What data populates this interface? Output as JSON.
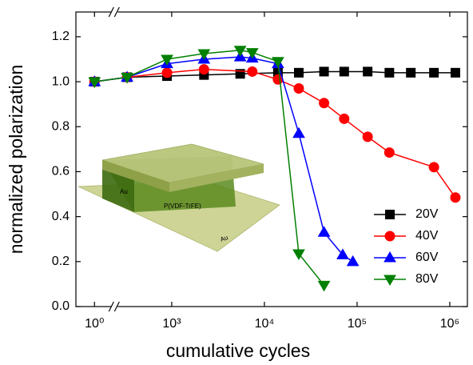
{
  "chart_data": {
    "type": "line",
    "x_label": "cumulative cycles",
    "y_label": "normalized polarization",
    "x_log": true,
    "xlim": [
      0.63,
      1550000
    ],
    "x_break": [
      1.58,
      232
    ],
    "ylim": [
      0,
      1.31
    ],
    "xticks": [
      {
        "value": 1,
        "label": "10⁰"
      },
      {
        "value": 1000,
        "label": "10³"
      },
      {
        "value": 10000,
        "label": "10⁴"
      },
      {
        "value": 100000,
        "label": "10⁵"
      },
      {
        "value": 1000000,
        "label": "10⁶"
      }
    ],
    "yticks": [
      {
        "value": 0,
        "label": "0.0"
      },
      {
        "value": 0.2,
        "label": "0.2"
      },
      {
        "value": 0.4,
        "label": "0.4"
      },
      {
        "value": 0.6,
        "label": "0.6"
      },
      {
        "value": 0.8,
        "label": "0.8"
      },
      {
        "value": 1,
        "label": "1.0"
      },
      {
        "value": 1.2,
        "label": "1.2"
      }
    ],
    "legend_position": "lower right",
    "inset_labels": [
      "Au",
      "P(VDF-TrFE)",
      "Au"
    ],
    "series": [
      {
        "name": "20V",
        "color": "#000000",
        "marker": "square",
        "x": [
          1,
          330,
          890,
          2230,
          5480,
          14000,
          23500,
          44000,
          72600,
          130000,
          223000,
          380000,
          675000,
          1150000
        ],
        "values": [
          1.0,
          1.02,
          1.025,
          1.03,
          1.035,
          1.04,
          1.04,
          1.045,
          1.045,
          1.045,
          1.04,
          1.04,
          1.04,
          1.04
        ]
      },
      {
        "name": "40V",
        "color": "#ff0000",
        "marker": "circle",
        "x": [
          1,
          330,
          890,
          2230,
          7400,
          14000,
          23500,
          44000,
          72600,
          130000,
          223000,
          675000,
          1150000
        ],
        "values": [
          1.0,
          1.02,
          1.04,
          1.055,
          1.045,
          1.01,
          0.97,
          0.905,
          0.835,
          0.755,
          0.685,
          0.62,
          0.485
        ]
      },
      {
        "name": "60V",
        "color": "#0000ff",
        "marker": "triangle-up",
        "x": [
          1,
          330,
          890,
          2230,
          5480,
          7400,
          14000,
          23500,
          44000,
          70000,
          90000
        ],
        "values": [
          1.0,
          1.02,
          1.08,
          1.1,
          1.11,
          1.105,
          1.08,
          0.77,
          0.33,
          0.23,
          0.2
        ]
      },
      {
        "name": "80V",
        "color": "#008000",
        "marker": "triangle-down",
        "x": [
          1,
          330,
          890,
          2230,
          5480,
          7400,
          14000,
          23500,
          44000
        ],
        "values": [
          1.0,
          1.02,
          1.1,
          1.125,
          1.14,
          1.13,
          1.09,
          0.235,
          0.095
        ]
      }
    ]
  }
}
